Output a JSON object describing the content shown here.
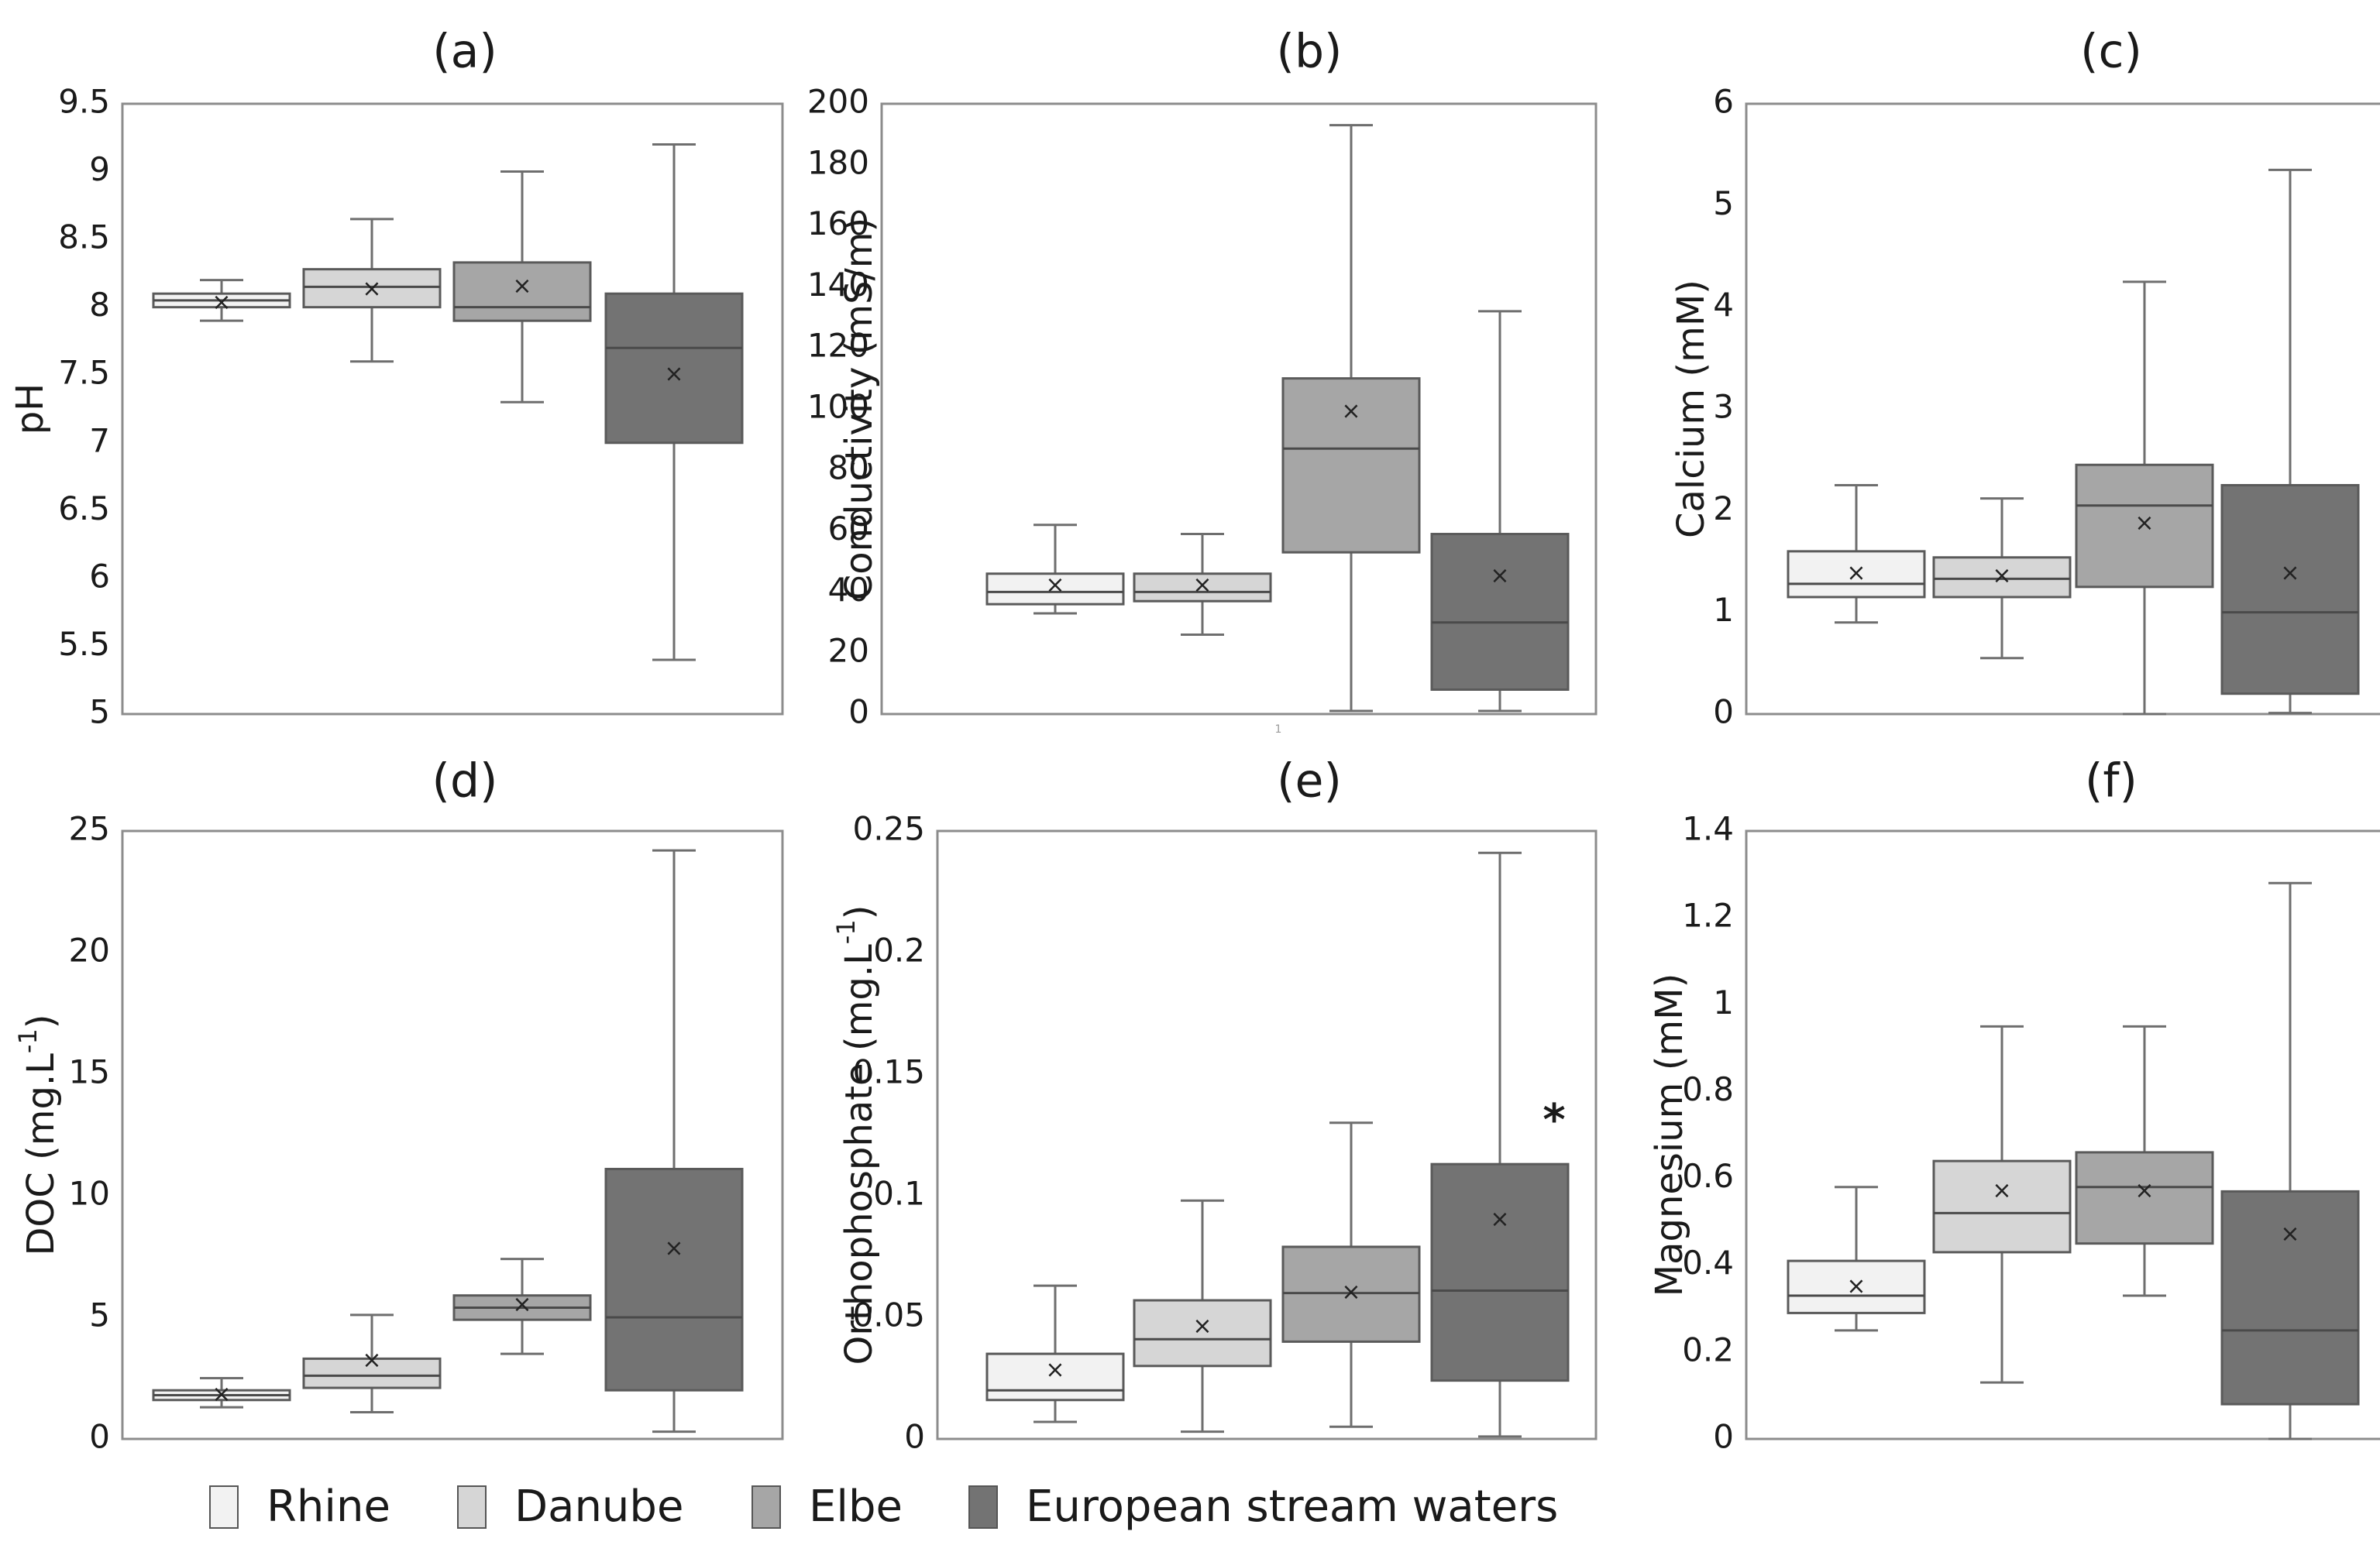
{
  "series_colors": {
    "Rhine": "#f2f2f2",
    "Danube": "#d6d6d6",
    "Elbe": "#a6a6a6",
    "European stream waters": "#737373"
  },
  "legend": {
    "items": [
      {
        "label": "Rhine",
        "color": "#f2f2f2"
      },
      {
        "label": "Danube",
        "color": "#d6d6d6"
      },
      {
        "label": "Elbe",
        "color": "#a6a6a6"
      },
      {
        "label": "European stream waters",
        "color": "#737373"
      }
    ]
  },
  "chart_data": [
    {
      "type": "box",
      "title": "(a)",
      "ylabel": "pH",
      "ylim": [
        5,
        9.5
      ],
      "yticks": [
        "5",
        "5.5",
        "6",
        "6.5",
        "7",
        "7.5",
        "8",
        "8.5",
        "9",
        "9.5"
      ],
      "categories": [
        "Rhine",
        "Danube",
        "Elbe",
        "European stream waters"
      ],
      "boxes": [
        {
          "name": "Rhine",
          "min": 7.9,
          "q1": 8.0,
          "median": 8.05,
          "q3": 8.1,
          "max": 8.2,
          "mean": 8.03
        },
        {
          "name": "Danube",
          "min": 7.6,
          "q1": 8.0,
          "median": 8.15,
          "q3": 8.28,
          "max": 8.65,
          "mean": 8.13
        },
        {
          "name": "Elbe",
          "min": 7.3,
          "q1": 7.9,
          "median": 8.0,
          "q3": 8.33,
          "max": 9.0,
          "mean": 8.15
        },
        {
          "name": "European stream waters",
          "min": 5.4,
          "q1": 7.0,
          "median": 7.7,
          "q3": 8.1,
          "max": 9.2,
          "mean": 7.5
        }
      ]
    },
    {
      "type": "box",
      "title": "(b)",
      "ylabel": "Conductivity (mS/m)",
      "ylim": [
        0,
        200
      ],
      "yticks": [
        "0",
        "20",
        "40",
        "60",
        "80",
        "100",
        "120",
        "140",
        "160",
        "180",
        "200"
      ],
      "categories": [
        "Rhine",
        "Danube",
        "Elbe",
        "European stream waters"
      ],
      "boxes": [
        {
          "name": "Rhine",
          "min": 33,
          "q1": 36,
          "median": 40,
          "q3": 46,
          "max": 62,
          "mean": 42
        },
        {
          "name": "Danube",
          "min": 26,
          "q1": 37,
          "median": 40,
          "q3": 46,
          "max": 59,
          "mean": 42
        },
        {
          "name": "Elbe",
          "min": 1,
          "q1": 53,
          "median": 87,
          "q3": 110,
          "max": 193,
          "mean": 99
        },
        {
          "name": "European stream waters",
          "min": 1,
          "q1": 8,
          "median": 30,
          "q3": 59,
          "max": 132,
          "mean": 45
        }
      ],
      "annotation": "1"
    },
    {
      "type": "box",
      "title": "(c)",
      "ylabel": "Calcium (mM)",
      "ylim": [
        0,
        6
      ],
      "yticks": [
        "0",
        "1",
        "2",
        "3",
        "4",
        "5",
        "6"
      ],
      "categories": [
        "Rhine",
        "Danube",
        "Elbe",
        "European stream waters"
      ],
      "boxes": [
        {
          "name": "Rhine",
          "min": 0.9,
          "q1": 1.15,
          "median": 1.28,
          "q3": 1.6,
          "max": 2.25,
          "mean": 1.38
        },
        {
          "name": "Danube",
          "min": 0.55,
          "q1": 1.15,
          "median": 1.33,
          "q3": 1.54,
          "max": 2.12,
          "mean": 1.35
        },
        {
          "name": "Elbe",
          "min": 0.0,
          "q1": 1.25,
          "median": 2.05,
          "q3": 2.45,
          "max": 4.25,
          "mean": 1.87
        },
        {
          "name": "European stream waters",
          "min": 0.01,
          "q1": 0.2,
          "median": 1.0,
          "q3": 2.25,
          "max": 5.35,
          "mean": 1.38
        }
      ]
    },
    {
      "type": "box",
      "title": "(d)",
      "ylabel": "DOC (mg.L",
      "ylabel_sup": "-1",
      "ylabel_end": ")",
      "ylim": [
        0,
        25
      ],
      "yticks": [
        "0",
        "5",
        "10",
        "15",
        "20",
        "25"
      ],
      "categories": [
        "Rhine",
        "Danube",
        "Elbe",
        "European stream waters"
      ],
      "boxes": [
        {
          "name": "Rhine",
          "min": 1.3,
          "q1": 1.6,
          "median": 1.8,
          "q3": 2.0,
          "max": 2.5,
          "mean": 1.8
        },
        {
          "name": "Danube",
          "min": 1.1,
          "q1": 2.1,
          "median": 2.6,
          "q3": 3.3,
          "max": 5.1,
          "mean": 3.2
        },
        {
          "name": "Elbe",
          "min": 3.5,
          "q1": 4.9,
          "median": 5.4,
          "q3": 5.9,
          "max": 7.4,
          "mean": 5.5
        },
        {
          "name": "European stream waters",
          "min": 0.3,
          "q1": 2.0,
          "median": 5.0,
          "q3": 11.1,
          "max": 24.2,
          "mean": 7.8
        }
      ]
    },
    {
      "type": "box",
      "title": "(e)",
      "ylabel": "Orthophosphate (mg.L",
      "ylabel_sup": "-1",
      "ylabel_end": ")",
      "ylim": [
        0,
        0.25
      ],
      "yticks": [
        "0",
        "0.05",
        "0.1",
        "0.15",
        "0.2",
        "0.25"
      ],
      "categories": [
        "Rhine",
        "Danube",
        "Elbe",
        "European stream waters"
      ],
      "boxes": [
        {
          "name": "Rhine",
          "min": 0.007,
          "q1": 0.016,
          "median": 0.02,
          "q3": 0.035,
          "max": 0.063,
          "mean": 0.028
        },
        {
          "name": "Danube",
          "min": 0.003,
          "q1": 0.03,
          "median": 0.041,
          "q3": 0.057,
          "max": 0.098,
          "mean": 0.046
        },
        {
          "name": "Elbe",
          "min": 0.005,
          "q1": 0.04,
          "median": 0.06,
          "q3": 0.079,
          "max": 0.13,
          "mean": 0.06
        },
        {
          "name": "European stream waters",
          "min": 0.001,
          "q1": 0.024,
          "median": 0.061,
          "q3": 0.113,
          "max": 0.241,
          "mean": 0.09
        }
      ],
      "annotation": "*"
    },
    {
      "type": "box",
      "title": "(f)",
      "ylabel": "Magnesium (mM)",
      "ylim": [
        0,
        1.4
      ],
      "yticks": [
        "0",
        "0.2",
        "0.4",
        "0.6",
        "0.8",
        "1",
        "1.2",
        "1.4"
      ],
      "categories": [
        "Rhine",
        "Danube",
        "Elbe",
        "European stream waters"
      ],
      "boxes": [
        {
          "name": "Rhine",
          "min": 0.25,
          "q1": 0.29,
          "median": 0.33,
          "q3": 0.41,
          "max": 0.58,
          "mean": 0.35
        },
        {
          "name": "Danube",
          "min": 0.13,
          "q1": 0.43,
          "median": 0.52,
          "q3": 0.64,
          "max": 0.95,
          "mean": 0.57
        },
        {
          "name": "Elbe",
          "min": 0.33,
          "q1": 0.45,
          "median": 0.58,
          "q3": 0.66,
          "max": 0.95,
          "mean": 0.57
        },
        {
          "name": "European stream waters",
          "min": 0.0,
          "q1": 0.08,
          "median": 0.25,
          "q3": 0.57,
          "max": 1.28,
          "mean": 0.47
        }
      ]
    }
  ]
}
